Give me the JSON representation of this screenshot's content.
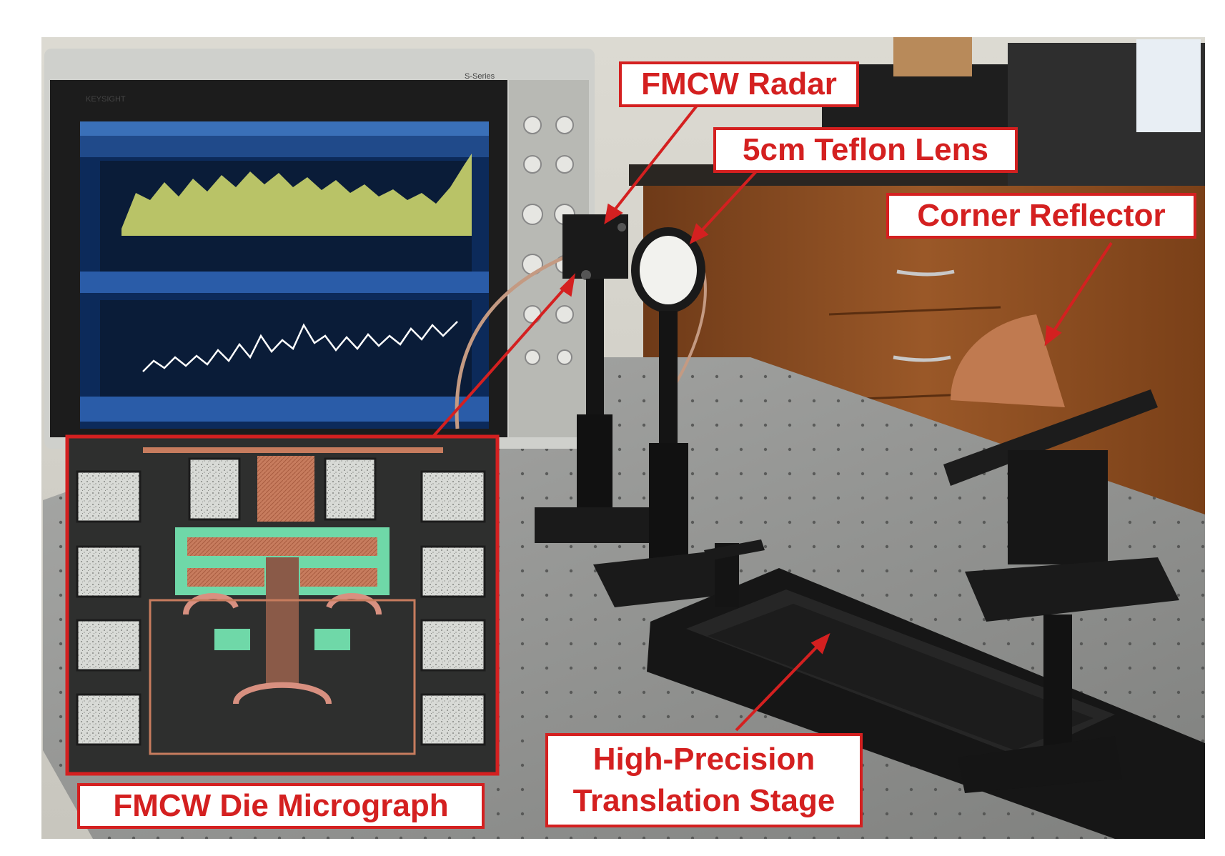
{
  "callouts": {
    "fmcw_radar": "FMCW Radar",
    "teflon_lens": "5cm Teflon Lens",
    "corner_reflector": "Corner Reflector",
    "die_micrograph": "FMCW Die Micrograph",
    "translation_stage_line1": "High-Precision",
    "translation_stage_line2": "Translation Stage"
  },
  "instrument": {
    "brand": "KEYSIGHT",
    "series": "S-Series"
  },
  "colors": {
    "callout_red": "#d42020",
    "scope_blue": "#2a5ca8",
    "trace_yellow": "#d8e070",
    "die_pink": "#d89080",
    "die_green": "#6fd8a8",
    "cabinet_wood": "#8a4c22",
    "table_gray": "#8c8e8c"
  }
}
